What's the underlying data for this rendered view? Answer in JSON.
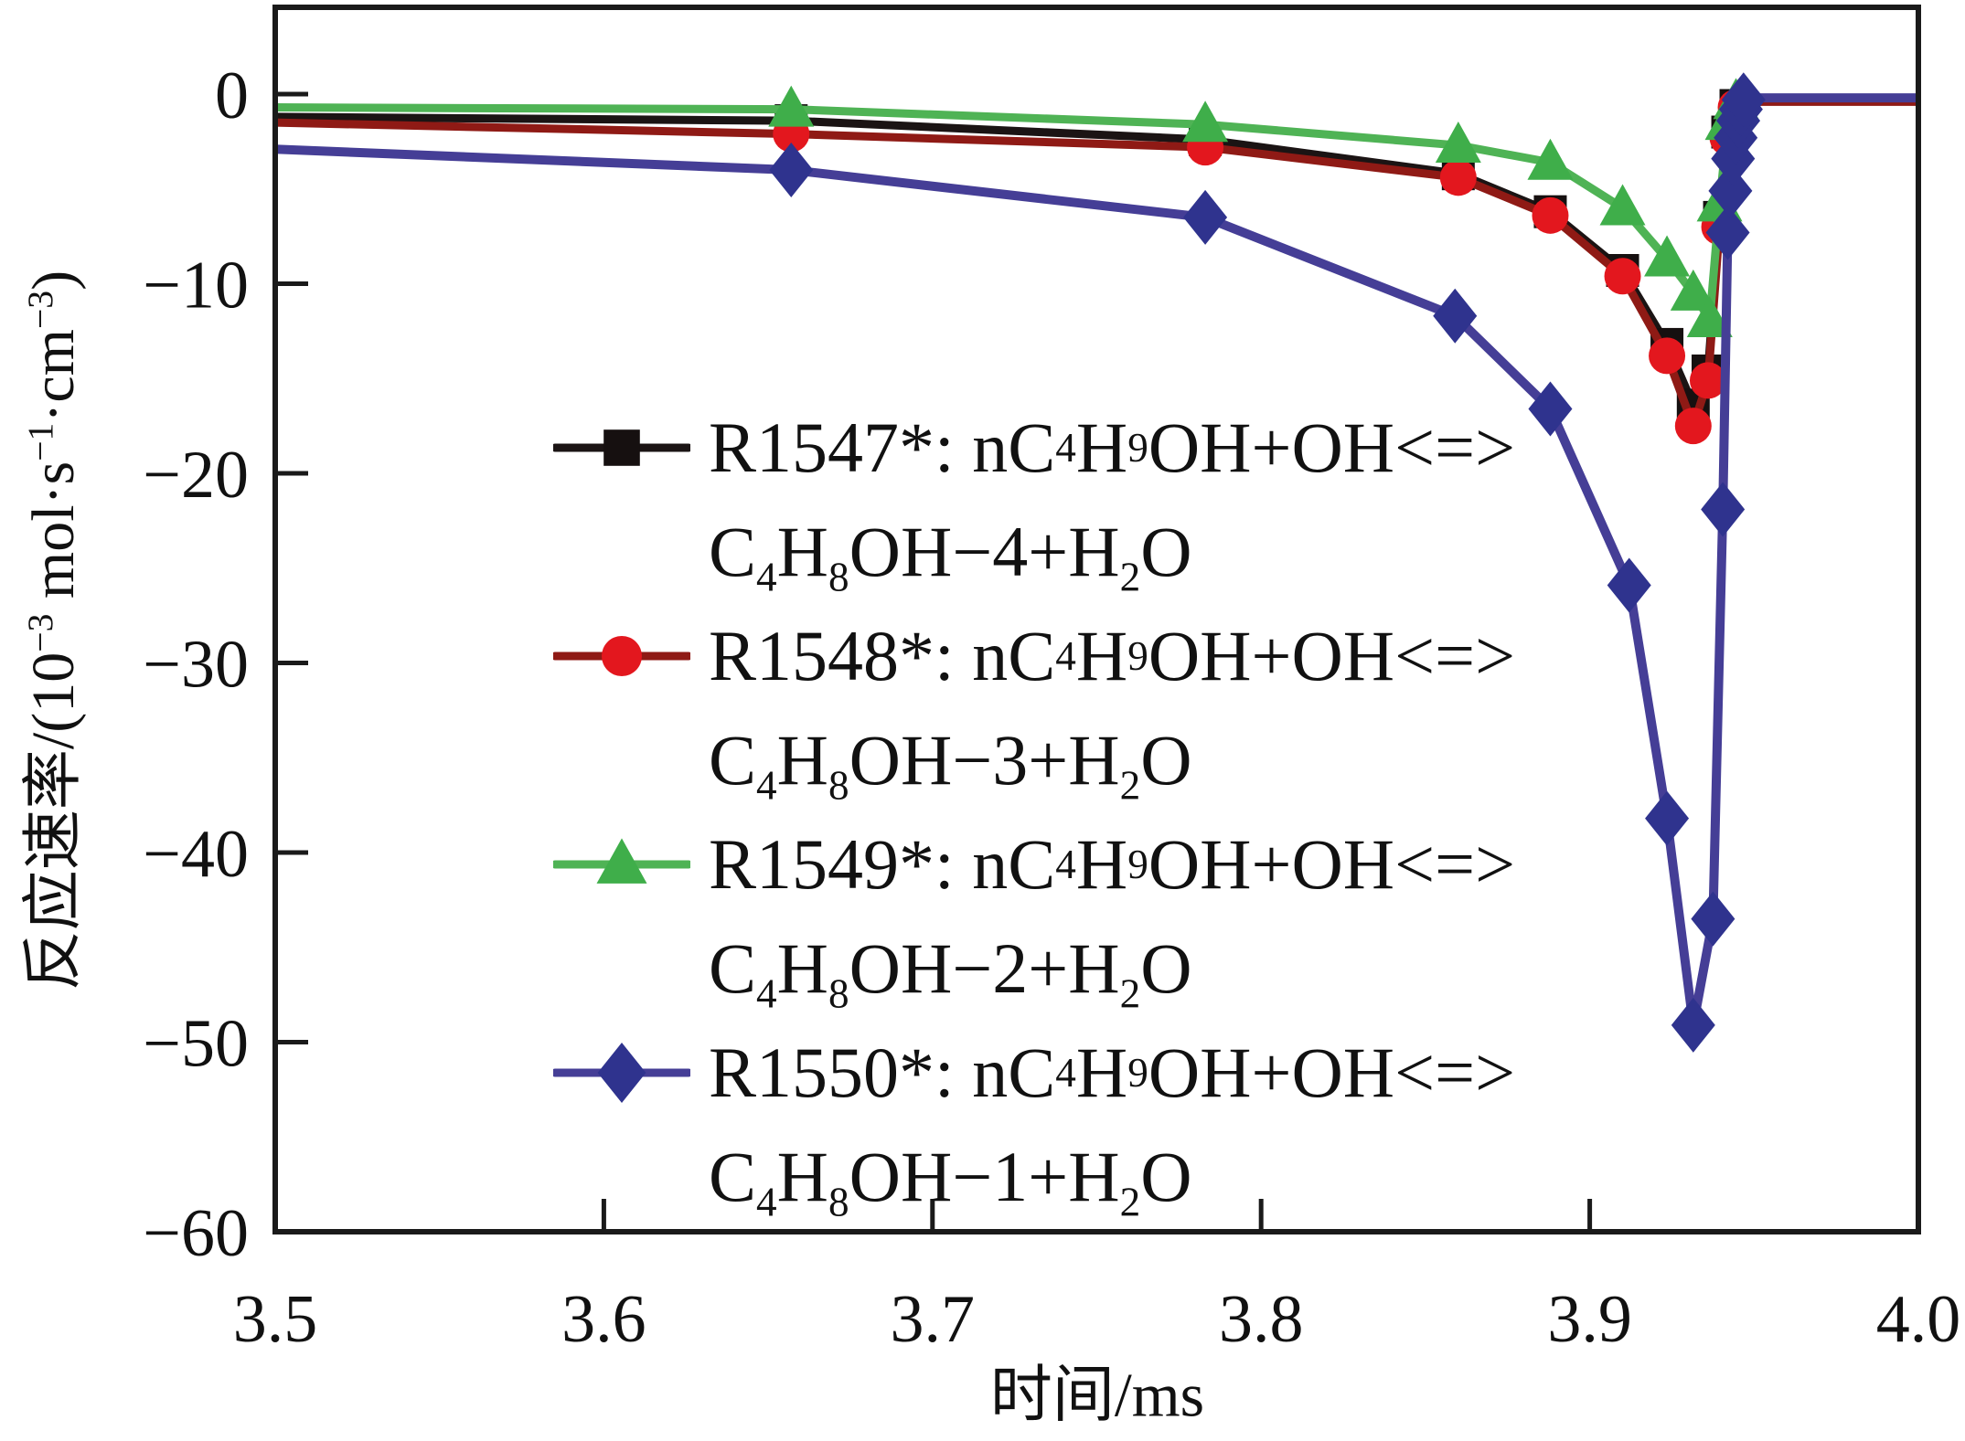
{
  "chart_data": {
    "type": "line",
    "title": "",
    "xlabel": "时间/ms",
    "ylabel": "反应速率/(10−3 mol·s−1·cm−3)",
    "ylabel_parts": [
      "反应速率/(10",
      "−3",
      " mol·s",
      "−1",
      "·cm",
      "−3",
      ")"
    ],
    "xlim": [
      3.5,
      4.0
    ],
    "ylim": [
      -60,
      4.58
    ],
    "x_ticks": [
      3.5,
      3.6,
      3.7,
      3.8,
      3.9,
      4.0
    ],
    "x_tick_labels": [
      "3.5",
      "3.6",
      "3.7",
      "3.8",
      "3.9",
      "4.0"
    ],
    "y_ticks": [
      0,
      -10,
      -20,
      -30,
      -40,
      -50,
      -60
    ],
    "y_tick_labels": [
      "0",
      "−10",
      "−20",
      "−30",
      "−40",
      "−50",
      "−60"
    ],
    "grid": false,
    "legend_position": "inside-center-left",
    "axis_color": "#1a1a1a",
    "series": [
      {
        "id": "R1547",
        "label": "R1547*: nC4H9OH+OH<=>C4H8OH−4+H2O",
        "marker": "square",
        "line_color": "#1b1414",
        "marker_color": "#161010",
        "points": [
          [
            3.5,
            -1.2,
            0
          ],
          [
            3.657,
            -1.4,
            1
          ],
          [
            3.783,
            -2.4,
            1
          ],
          [
            3.86,
            -4.2,
            1
          ],
          [
            3.888,
            -6.2,
            1
          ],
          [
            3.91,
            -9.3,
            1
          ],
          [
            3.9235,
            -13.2,
            1
          ],
          [
            3.9315,
            -16.4,
            1
          ],
          [
            3.936,
            -14.6,
            1
          ],
          [
            3.9395,
            -6.5,
            1
          ],
          [
            3.942,
            -2.0,
            1
          ],
          [
            3.9445,
            -0.6,
            1
          ],
          [
            3.947,
            -0.3,
            0
          ],
          [
            4.0,
            -0.3,
            0
          ]
        ]
      },
      {
        "id": "R1548",
        "label": "R1548*: nC4H9OH+OH<=>C4H8OH−3+H2O",
        "marker": "circle",
        "line_color": "#8f1a15",
        "marker_color": "#e3171e",
        "points": [
          [
            3.5,
            -1.5,
            0
          ],
          [
            3.657,
            -2.1,
            1
          ],
          [
            3.783,
            -2.8,
            1
          ],
          [
            3.86,
            -4.4,
            1
          ],
          [
            3.888,
            -6.4,
            1
          ],
          [
            3.91,
            -9.6,
            1
          ],
          [
            3.9235,
            -13.8,
            1
          ],
          [
            3.9315,
            -17.5,
            1
          ],
          [
            3.936,
            -15.1,
            1
          ],
          [
            3.9395,
            -7.0,
            1
          ],
          [
            3.942,
            -2.3,
            1
          ],
          [
            3.9445,
            -0.7,
            1
          ],
          [
            3.947,
            -0.4,
            0
          ],
          [
            4.0,
            -0.4,
            0
          ]
        ]
      },
      {
        "id": "R1549",
        "label": "R1549*: nC4H9OH+OH<=>C4H8OH−2+H2O",
        "marker": "triangle",
        "line_color": "#4fb355",
        "marker_color": "#3fae4a",
        "points": [
          [
            3.5,
            -0.7,
            0
          ],
          [
            3.657,
            -0.8,
            1
          ],
          [
            3.783,
            -1.6,
            1
          ],
          [
            3.86,
            -2.7,
            1
          ],
          [
            3.888,
            -3.6,
            1
          ],
          [
            3.91,
            -6.0,
            1
          ],
          [
            3.9235,
            -8.7,
            1
          ],
          [
            3.9315,
            -10.5,
            1
          ],
          [
            3.9365,
            -11.9,
            1
          ],
          [
            3.9395,
            -5.8,
            1
          ],
          [
            3.942,
            -1.5,
            1
          ],
          [
            3.9445,
            -0.4,
            1
          ],
          [
            3.947,
            -0.2,
            0
          ],
          [
            4.0,
            -0.2,
            0
          ]
        ]
      },
      {
        "id": "R1550",
        "label": "R1550*: nC4H9OH+OH<=>C4H8OH−1+H2O",
        "marker": "diamond",
        "line_color": "#453e96",
        "marker_color": "#2f338e",
        "points": [
          [
            3.5,
            -2.9,
            0
          ],
          [
            3.657,
            -4.0,
            1
          ],
          [
            3.783,
            -6.5,
            1
          ],
          [
            3.859,
            -11.7,
            1
          ],
          [
            3.888,
            -16.6,
            1
          ],
          [
            3.912,
            -25.9,
            1
          ],
          [
            3.9235,
            -38.2,
            1
          ],
          [
            3.9315,
            -49.1,
            1
          ],
          [
            3.9375,
            -43.5,
            1
          ],
          [
            3.9405,
            -21.9,
            1
          ],
          [
            3.942,
            -7.3,
            1
          ],
          [
            3.9428,
            -5.1,
            1
          ],
          [
            3.9436,
            -3.4,
            1
          ],
          [
            3.9444,
            -2.3,
            1
          ],
          [
            3.9452,
            -1.4,
            1
          ],
          [
            3.946,
            -0.8,
            1
          ],
          [
            3.9468,
            -0.3,
            1
          ],
          [
            3.948,
            -0.2,
            0
          ],
          [
            4.0,
            -0.2,
            0
          ]
        ]
      }
    ]
  },
  "legend": {
    "items": [
      {
        "series": "R1547",
        "line1": [
          "R1547*: nC",
          "4",
          "H",
          "9",
          "OH+OH<=>"
        ],
        "line2": [
          "C",
          "4",
          "H",
          "8",
          "OH−4+H",
          "2",
          "O"
        ]
      },
      {
        "series": "R1548",
        "line1": [
          "R1548*: nC",
          "4",
          "H",
          "9",
          "OH+OH<=>"
        ],
        "line2": [
          "C",
          "4",
          "H",
          "8",
          "OH−3+H",
          "2",
          "O"
        ]
      },
      {
        "series": "R1549",
        "line1": [
          "R1549*: nC",
          "4",
          "H",
          "9",
          "OH+OH<=>"
        ],
        "line2": [
          "C",
          "4",
          "H",
          "8",
          "OH−2+H",
          "2",
          "O"
        ]
      },
      {
        "series": "R1550",
        "line1": [
          "R1550*: nC",
          "4",
          "H",
          "9",
          "OH+OH<=>"
        ],
        "line2": [
          "C",
          "4",
          "H",
          "8",
          "OH−1+H",
          "2",
          "O"
        ]
      }
    ]
  }
}
